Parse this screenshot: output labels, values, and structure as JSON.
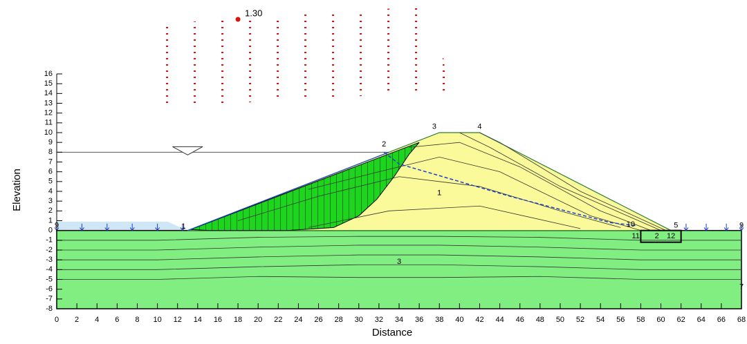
{
  "chart_data": {
    "type": "cross-section",
    "xlabel": "Distance",
    "ylabel": "Elevation",
    "xlim": [
      0,
      68
    ],
    "xticks": [
      0,
      2,
      4,
      6,
      8,
      10,
      12,
      14,
      16,
      18,
      20,
      22,
      24,
      26,
      28,
      30,
      32,
      34,
      36,
      38,
      40,
      42,
      44,
      46,
      48,
      50,
      52,
      54,
      56,
      58,
      60,
      62,
      64,
      66,
      68
    ],
    "ylim": [
      -8,
      16
    ],
    "yticks": [
      -8,
      -7,
      -6,
      -5,
      -4,
      -3,
      -2,
      -1,
      0,
      1,
      2,
      3,
      4,
      5,
      6,
      7,
      8,
      9,
      10,
      11,
      12,
      13,
      14,
      15,
      16
    ],
    "factor_of_safety": "1.30",
    "point_labels": [
      "1",
      "2",
      "3",
      "4",
      "5",
      "9",
      "9",
      "10",
      "11",
      "12",
      "7"
    ],
    "region_labels": [
      "1",
      "2",
      "3"
    ]
  }
}
